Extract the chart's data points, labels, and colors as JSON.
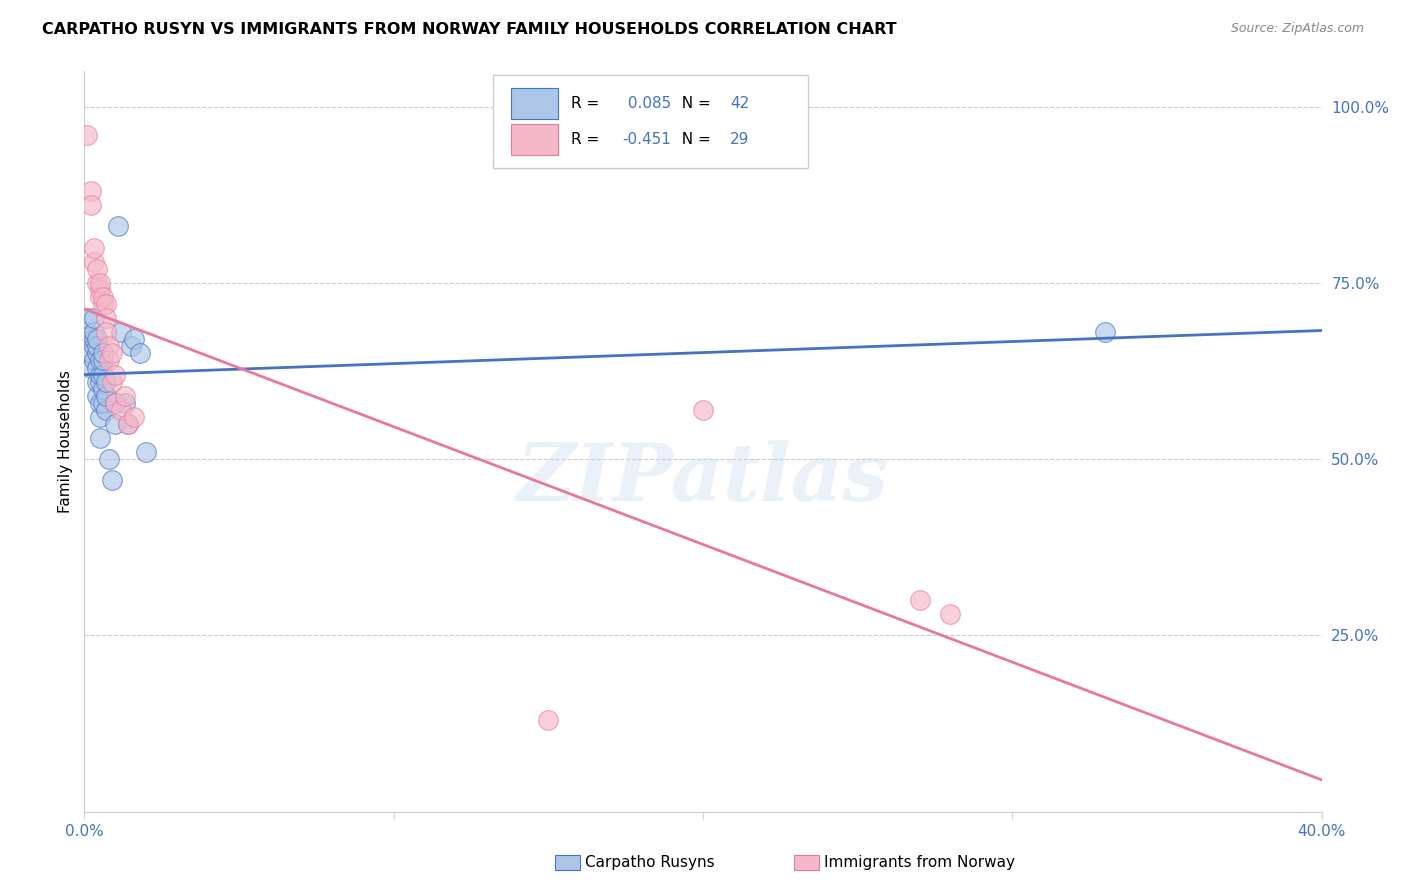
{
  "title": "CARPATHO RUSYN VS IMMIGRANTS FROM NORWAY FAMILY HOUSEHOLDS CORRELATION CHART",
  "source": "Source: ZipAtlas.com",
  "ylabel": "Family Households",
  "yticks": [
    0.25,
    0.5,
    0.75,
    1.0
  ],
  "ytick_labels": [
    "25.0%",
    "50.0%",
    "75.0%",
    "100.0%"
  ],
  "blue_R": 0.085,
  "blue_N": 42,
  "pink_R": -0.451,
  "pink_N": 29,
  "blue_fill": "#adc6e8",
  "pink_fill": "#f5b8c8",
  "blue_edge": "#4472c4",
  "pink_edge": "#e8789a",
  "watermark": "ZIPatlas",
  "blue_points_x": [
    0.001,
    0.001,
    0.002,
    0.002,
    0.003,
    0.003,
    0.003,
    0.003,
    0.003,
    0.004,
    0.004,
    0.004,
    0.004,
    0.004,
    0.004,
    0.005,
    0.005,
    0.005,
    0.005,
    0.005,
    0.005,
    0.006,
    0.006,
    0.006,
    0.006,
    0.006,
    0.007,
    0.007,
    0.007,
    0.008,
    0.009,
    0.01,
    0.01,
    0.011,
    0.012,
    0.013,
    0.014,
    0.015,
    0.016,
    0.018,
    0.02,
    0.33
  ],
  "blue_points_y": [
    0.68,
    0.7,
    0.63,
    0.65,
    0.64,
    0.66,
    0.67,
    0.68,
    0.7,
    0.59,
    0.61,
    0.63,
    0.65,
    0.66,
    0.67,
    0.53,
    0.56,
    0.58,
    0.61,
    0.62,
    0.64,
    0.58,
    0.6,
    0.62,
    0.64,
    0.65,
    0.57,
    0.59,
    0.61,
    0.5,
    0.47,
    0.55,
    0.58,
    0.83,
    0.68,
    0.58,
    0.55,
    0.66,
    0.67,
    0.65,
    0.51,
    0.68
  ],
  "pink_points_x": [
    0.001,
    0.002,
    0.002,
    0.003,
    0.003,
    0.004,
    0.004,
    0.005,
    0.005,
    0.005,
    0.006,
    0.006,
    0.007,
    0.007,
    0.007,
    0.008,
    0.008,
    0.009,
    0.009,
    0.01,
    0.01,
    0.012,
    0.013,
    0.014,
    0.016,
    0.15,
    0.2,
    0.27,
    0.28
  ],
  "pink_points_y": [
    0.96,
    0.88,
    0.86,
    0.78,
    0.8,
    0.75,
    0.77,
    0.74,
    0.73,
    0.75,
    0.72,
    0.73,
    0.72,
    0.7,
    0.68,
    0.66,
    0.64,
    0.65,
    0.61,
    0.62,
    0.58,
    0.57,
    0.59,
    0.55,
    0.56,
    0.13,
    0.57,
    0.3,
    0.28
  ],
  "xlim": [
    0.0,
    0.4
  ],
  "ylim": [
    0.0,
    1.05
  ]
}
